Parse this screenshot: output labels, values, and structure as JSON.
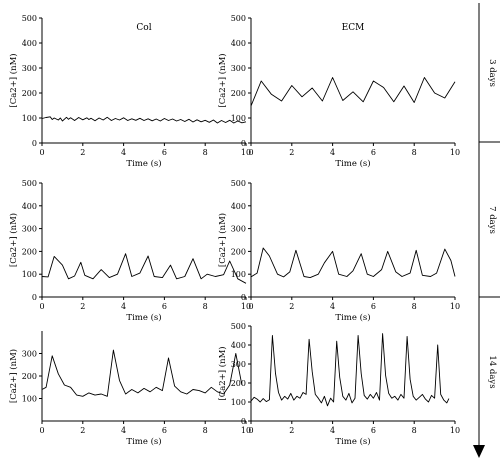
{
  "side_labels": [
    "3 days",
    "7 days",
    "14 days"
  ],
  "chart_data": [
    {
      "type": "line",
      "title": "Col",
      "xlabel": "Time (s)",
      "ylabel": "[Ca2+] (nM)",
      "xlim": [
        0,
        10
      ],
      "ylim": [
        0,
        500
      ],
      "xticks": [
        "0",
        "2",
        "4",
        "6",
        "8",
        "10"
      ],
      "yticks": [
        "0",
        "100",
        "200",
        "300",
        "400",
        "500"
      ],
      "series": [
        {
          "x": [
            0,
            0.2,
            0.4,
            0.5,
            0.6,
            0.8,
            0.9,
            1.0,
            1.2,
            1.3,
            1.4,
            1.6,
            1.8,
            2.0,
            2.2,
            2.3,
            2.4,
            2.6,
            2.8,
            3.0,
            3.2,
            3.4,
            3.6,
            3.8,
            4.0,
            4.2,
            4.4,
            4.6,
            4.8,
            5.0,
            5.2,
            5.4,
            5.6,
            5.8,
            6.0,
            6.2,
            6.4,
            6.6,
            6.8,
            7.0,
            7.2,
            7.4,
            7.6,
            7.8,
            8.0,
            8.2,
            8.4,
            8.6,
            8.8,
            9.0,
            9.2,
            9.4,
            9.6,
            9.8,
            10.0
          ],
          "y": [
            98,
            102,
            105,
            94,
            100,
            92,
            100,
            88,
            103,
            95,
            101,
            90,
            102,
            93,
            101,
            94,
            99,
            89,
            100,
            92,
            103,
            90,
            98,
            92,
            101,
            90,
            97,
            91,
            99,
            90,
            97,
            89,
            96,
            88,
            98,
            90,
            96,
            88,
            94,
            86,
            95,
            84,
            93,
            85,
            91,
            83,
            92,
            80,
            90,
            82,
            91,
            80,
            88,
            81,
            85
          ]
        }
      ]
    },
    {
      "type": "line",
      "title": "ECM",
      "xlabel": "Time (s)",
      "ylabel": "[Ca2+] (nM)",
      "xlim": [
        0,
        10
      ],
      "ylim": [
        0,
        500
      ],
      "xticks": [
        "0",
        "2",
        "4",
        "6",
        "8",
        "10"
      ],
      "yticks": [
        "0",
        "100",
        "200",
        "300",
        "400",
        "500"
      ],
      "series": [
        {
          "x": [
            0,
            0.5,
            1.0,
            1.5,
            2.0,
            2.5,
            3.0,
            3.5,
            4.0,
            4.5,
            5.0,
            5.5,
            6.0,
            6.5,
            7.0,
            7.5,
            8.0,
            8.5,
            9.0,
            9.5,
            10.0
          ],
          "y": [
            148,
            248,
            195,
            168,
            230,
            185,
            220,
            168,
            262,
            170,
            205,
            165,
            248,
            222,
            165,
            228,
            162,
            262,
            200,
            180,
            245
          ]
        }
      ]
    },
    {
      "type": "line",
      "title": "",
      "xlabel": "Time (s)",
      "ylabel": "[Ca2+] (nM)",
      "xlim": [
        0,
        10
      ],
      "ylim": [
        0,
        500
      ],
      "xticks": [
        "0",
        "2",
        "4",
        "6",
        "8",
        "10"
      ],
      "yticks": [
        "0",
        "100",
        "200",
        "300",
        "400",
        "500"
      ],
      "series": [
        {
          "x": [
            0,
            0.3,
            0.6,
            1.0,
            1.3,
            1.6,
            1.9,
            2.1,
            2.5,
            2.9,
            3.3,
            3.7,
            4.1,
            4.4,
            4.8,
            5.2,
            5.5,
            5.9,
            6.3,
            6.6,
            7.0,
            7.4,
            7.8,
            8.1,
            8.5,
            8.9,
            9.2,
            9.6,
            10.0
          ],
          "y": [
            90,
            88,
            178,
            140,
            80,
            92,
            152,
            95,
            80,
            120,
            85,
            100,
            190,
            90,
            105,
            180,
            90,
            85,
            140,
            80,
            90,
            168,
            80,
            100,
            90,
            98,
            158,
            80,
            60
          ]
        }
      ]
    },
    {
      "type": "line",
      "title": "",
      "xlabel": "Time (s)",
      "ylabel": "[Ca2+] (nM)",
      "xlim": [
        0,
        10
      ],
      "ylim": [
        0,
        500
      ],
      "xticks": [
        "0",
        "2",
        "4",
        "6",
        "8",
        "10"
      ],
      "yticks": [
        "0",
        "100",
        "200",
        "300",
        "400",
        "500"
      ],
      "series": [
        {
          "x": [
            0,
            0.3,
            0.6,
            0.9,
            1.3,
            1.6,
            1.9,
            2.2,
            2.6,
            2.9,
            3.3,
            3.6,
            4.0,
            4.3,
            4.7,
            5.0,
            5.4,
            5.7,
            6.0,
            6.4,
            6.7,
            7.1,
            7.4,
            7.8,
            8.1,
            8.4,
            8.8,
            9.1,
            9.5,
            9.8,
            10.0
          ],
          "y": [
            88,
            105,
            215,
            180,
            100,
            88,
            110,
            205,
            90,
            85,
            100,
            150,
            200,
            100,
            90,
            115,
            190,
            100,
            90,
            120,
            200,
            110,
            90,
            105,
            205,
            95,
            90,
            105,
            210,
            160,
            90
          ]
        }
      ]
    },
    {
      "type": "line",
      "title": "",
      "xlabel": "Time (s)",
      "ylabel": "[Ca2+] (nM)",
      "xlim": [
        0,
        10
      ],
      "ylim": [
        0,
        400
      ],
      "xticks": [
        "0",
        "2",
        "4",
        "6",
        "8",
        "10"
      ],
      "yticks": [
        "100",
        "200",
        "300"
      ],
      "series": [
        {
          "x": [
            0,
            0.2,
            0.5,
            0.8,
            1.1,
            1.4,
            1.7,
            2.0,
            2.3,
            2.6,
            2.9,
            3.2,
            3.5,
            3.8,
            4.1,
            4.4,
            4.7,
            5.0,
            5.3,
            5.6,
            5.9,
            6.2,
            6.5,
            6.8,
            7.1,
            7.4,
            7.7,
            8.0,
            8.3,
            8.6,
            8.9,
            9.2,
            9.5,
            9.8
          ],
          "y": [
            140,
            150,
            290,
            210,
            160,
            150,
            115,
            110,
            125,
            115,
            120,
            110,
            315,
            180,
            120,
            140,
            125,
            145,
            130,
            150,
            135,
            280,
            155,
            130,
            120,
            140,
            135,
            125,
            150,
            130,
            120,
            160,
            300,
            160
          ]
        }
      ]
    },
    {
      "type": "line",
      "title": "",
      "xlabel": "Time (s)",
      "ylabel": "[Ca2+] (nM)",
      "xlim": [
        0,
        10
      ],
      "ylim": [
        0,
        500
      ],
      "xticks": [
        "0",
        "2",
        "4",
        "6",
        "8",
        "10"
      ],
      "yticks": [
        "0",
        "100",
        "200",
        "300",
        "400",
        "500"
      ],
      "series": [
        {
          "x": [
            0,
            0.15,
            0.3,
            0.45,
            0.6,
            0.75,
            0.9,
            1.05,
            1.2,
            1.35,
            1.5,
            1.65,
            1.8,
            1.95,
            2.1,
            2.25,
            2.4,
            2.55,
            2.7,
            2.85,
            3.0,
            3.15,
            3.3,
            3.45,
            3.6,
            3.75,
            3.9,
            4.05,
            4.2,
            4.35,
            4.5,
            4.65,
            4.8,
            4.95,
            5.1,
            5.25,
            5.4,
            5.55,
            5.7,
            5.85,
            6.0,
            6.15,
            6.3,
            6.45,
            6.6,
            6.75,
            6.9,
            7.05,
            7.2,
            7.35,
            7.5,
            7.65,
            7.8,
            7.95,
            8.1,
            8.25,
            8.4,
            8.55,
            8.7,
            8.85,
            9.0,
            9.15,
            9.3,
            9.45,
            9.6,
            9.7
          ],
          "y": [
            105,
            125,
            115,
            100,
            118,
            102,
            112,
            450,
            250,
            150,
            110,
            130,
            115,
            145,
            110,
            130,
            120,
            150,
            140,
            430,
            260,
            140,
            120,
            95,
            130,
            80,
            120,
            100,
            420,
            230,
            130,
            110,
            145,
            95,
            120,
            450,
            250,
            135,
            115,
            140,
            120,
            150,
            110,
            460,
            240,
            145,
            120,
            130,
            110,
            140,
            120,
            445,
            220,
            130,
            110,
            125,
            140,
            115,
            100,
            135,
            120,
            400,
            140,
            110,
            95,
            118
          ]
        }
      ]
    }
  ]
}
